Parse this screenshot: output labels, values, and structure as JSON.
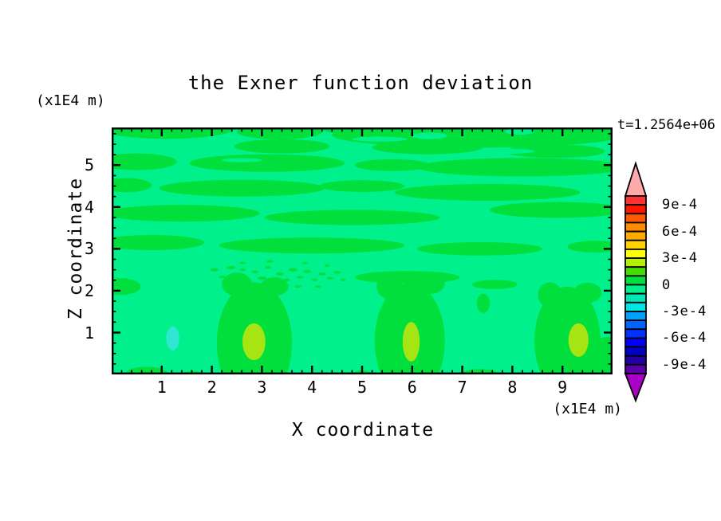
{
  "chart_data": {
    "type": "heatmap",
    "subtype": "filled-contour",
    "title": "the Exner function deviation",
    "time_label": "t=1.2564e+06",
    "x_axis": {
      "label": "X coordinate",
      "unit": "(x1E4 m)",
      "range": [
        0,
        10
      ],
      "major_ticks": [
        1,
        2,
        3,
        4,
        5,
        6,
        7,
        8,
        9
      ],
      "minor_step": 0.2
    },
    "z_axis": {
      "label": "Z coordinate",
      "unit": "(x1E4 m)",
      "range": [
        0,
        5.9
      ],
      "major_ticks": [
        1,
        2,
        3,
        4,
        5
      ],
      "minor_step": 0.25
    },
    "value": {
      "contour_interval": 0.0001,
      "range": [
        -0.001,
        0.001
      ],
      "colorbar_labels": [
        "9e-4",
        "6e-4",
        "3e-4",
        "0",
        "-3e-4",
        "-6e-4",
        "-9e-4"
      ],
      "dominant_bands": "field is mostly between -1e-4 and +1e-4; wavy horizontal streaks of 0..1e-4 over a -1e-4..0 background; three maxima ~2.5e-4 near z=0.8 at x=2.85, 5.98, 9.32; one minimum ~-1.5e-4 at x=1.22, z=0.86"
    },
    "colors": {
      "bands": [
        "#FF3232",
        "#FF1400",
        "#FF5A00",
        "#FF8C00",
        "#FFAA00",
        "#FFD200",
        "#FFFF00",
        "#B4F000",
        "#46DC00",
        "#00DF3C",
        "#00F08C",
        "#00E6B4",
        "#00E6E6",
        "#00A0FF",
        "#0064FF",
        "#0032FF",
        "#0000F5",
        "#0000C8",
        "#2300A5",
        "#5A00AA"
      ],
      "above": "#FFAAAA",
      "below": "#AA00C8",
      "positive_band": "#00DF3C",
      "negative_band": "#00F08C",
      "maxima": "#A6E414",
      "minima": "#2EE6D2",
      "axis": "#000000"
    },
    "field": {
      "streaks": [
        [
          1.1,
          5.85,
          1.3,
          0.22
        ],
        [
          3.35,
          5.8,
          0.85,
          0.18
        ],
        [
          7.3,
          5.72,
          2.9,
          0.3
        ],
        [
          4.95,
          5.88,
          0.75,
          0.15
        ],
        [
          3.4,
          5.45,
          0.95,
          0.17
        ],
        [
          6.3,
          5.42,
          1.1,
          0.16
        ],
        [
          8.85,
          5.33,
          1.0,
          0.16
        ],
        [
          0.5,
          5.08,
          0.8,
          0.2
        ],
        [
          3.1,
          5.05,
          1.55,
          0.21
        ],
        [
          5.6,
          5.0,
          0.75,
          0.14
        ],
        [
          8.2,
          4.95,
          2.1,
          0.22
        ],
        [
          0.3,
          4.52,
          0.5,
          0.17
        ],
        [
          2.6,
          4.45,
          1.65,
          0.2
        ],
        [
          5.0,
          4.5,
          0.85,
          0.14
        ],
        [
          7.5,
          4.35,
          1.85,
          0.2
        ],
        [
          1.4,
          3.85,
          1.55,
          0.2
        ],
        [
          4.8,
          3.75,
          1.75,
          0.18
        ],
        [
          8.9,
          3.93,
          1.35,
          0.19
        ],
        [
          0.8,
          3.15,
          1.05,
          0.18
        ],
        [
          4.0,
          3.08,
          1.85,
          0.19
        ],
        [
          7.35,
          3.0,
          1.25,
          0.16
        ],
        [
          9.65,
          3.05,
          0.55,
          0.14
        ],
        [
          5.9,
          2.32,
          1.05,
          0.15
        ],
        [
          7.65,
          2.15,
          0.45,
          0.11
        ],
        [
          0.18,
          2.1,
          0.4,
          0.2
        ]
      ],
      "holes": [
        [
          6.35,
          5.7,
          0.35,
          0.08
        ],
        [
          8.15,
          5.8,
          0.3,
          0.07
        ],
        [
          7.9,
          5.33,
          0.55,
          0.06
        ],
        [
          5.35,
          5.62,
          0.55,
          0.06
        ],
        [
          6.9,
          4.6,
          0.35,
          0.06
        ],
        [
          2.6,
          5.12,
          0.4,
          0.05
        ]
      ],
      "columns": [
        [
          2.85,
          0.75,
          0.75,
          1.45
        ],
        [
          2.5,
          2.15,
          0.3,
          0.28
        ],
        [
          3.25,
          2.1,
          0.28,
          0.22
        ],
        [
          5.95,
          0.8,
          0.7,
          1.38
        ],
        [
          5.55,
          2.1,
          0.26,
          0.3
        ],
        [
          6.35,
          2.18,
          0.3,
          0.26
        ],
        [
          9.1,
          0.8,
          0.66,
          1.3
        ],
        [
          8.75,
          1.9,
          0.24,
          0.3
        ],
        [
          9.5,
          1.95,
          0.28,
          0.24
        ],
        [
          9.95,
          0.35,
          0.5,
          0.55
        ],
        [
          7.42,
          1.7,
          0.13,
          0.23
        ]
      ],
      "bottom_bumps": [
        [
          0.7,
          0.02,
          0.42,
          0.16
        ],
        [
          1.62,
          0.0,
          0.22,
          0.08
        ],
        [
          5.0,
          0.0,
          0.18,
          0.1
        ],
        [
          7.35,
          0.0,
          0.38,
          0.13
        ],
        [
          4.62,
          0.0,
          0.12,
          0.06
        ]
      ],
      "maxima_blobs": [
        [
          2.84,
          0.78,
          0.23,
          0.44
        ],
        [
          5.98,
          0.78,
          0.17,
          0.47
        ],
        [
          9.32,
          0.82,
          0.2,
          0.4
        ]
      ],
      "minima_blobs": [
        [
          1.22,
          0.86,
          0.13,
          0.29
        ]
      ],
      "speckles": [
        [
          2.05,
          2.5,
          0.08,
          0.04
        ],
        [
          2.2,
          2.33,
          0.06,
          0.03
        ],
        [
          2.38,
          2.55,
          0.09,
          0.04
        ],
        [
          2.52,
          2.3,
          0.07,
          0.035
        ],
        [
          2.62,
          2.5,
          0.06,
          0.03
        ],
        [
          2.72,
          2.22,
          0.08,
          0.04
        ],
        [
          2.86,
          2.45,
          0.07,
          0.03
        ],
        [
          3.0,
          2.3,
          0.09,
          0.04
        ],
        [
          3.12,
          2.56,
          0.06,
          0.03
        ],
        [
          3.22,
          2.2,
          0.07,
          0.035
        ],
        [
          3.36,
          2.4,
          0.08,
          0.04
        ],
        [
          3.5,
          2.26,
          0.06,
          0.03
        ],
        [
          3.62,
          2.5,
          0.09,
          0.04
        ],
        [
          3.76,
          2.32,
          0.07,
          0.03
        ],
        [
          3.9,
          2.46,
          0.08,
          0.04
        ],
        [
          4.05,
          2.26,
          0.06,
          0.03
        ],
        [
          4.2,
          2.4,
          0.08,
          0.035
        ],
        [
          4.36,
          2.3,
          0.06,
          0.03
        ],
        [
          4.5,
          2.44,
          0.07,
          0.035
        ],
        [
          4.62,
          2.26,
          0.05,
          0.03
        ],
        [
          2.32,
          2.14,
          0.06,
          0.03
        ],
        [
          2.9,
          2.1,
          0.07,
          0.03
        ],
        [
          3.3,
          2.06,
          0.06,
          0.03
        ],
        [
          3.72,
          2.1,
          0.07,
          0.03
        ],
        [
          4.12,
          2.1,
          0.06,
          0.03
        ],
        [
          2.62,
          2.66,
          0.06,
          0.03
        ],
        [
          3.16,
          2.7,
          0.07,
          0.03
        ],
        [
          3.86,
          2.66,
          0.06,
          0.03
        ],
        [
          4.3,
          2.6,
          0.05,
          0.03
        ]
      ]
    }
  }
}
